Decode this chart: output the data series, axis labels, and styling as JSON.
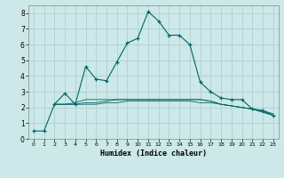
{
  "xlabel": "Humidex (Indice chaleur)",
  "bg_color": "#cce8e8",
  "grid_color": "#b0d0d0",
  "line_color": "#006666",
  "xlim": [
    -0.5,
    23.5
  ],
  "ylim": [
    0,
    8.5
  ],
  "xticks": [
    0,
    1,
    2,
    3,
    4,
    5,
    6,
    7,
    8,
    9,
    10,
    11,
    12,
    13,
    14,
    15,
    16,
    17,
    18,
    19,
    20,
    21,
    22,
    23
  ],
  "yticks": [
    0,
    1,
    2,
    3,
    4,
    5,
    6,
    7,
    8
  ],
  "series1_x": [
    0,
    1,
    2,
    3,
    4,
    5,
    6,
    7,
    8,
    9,
    10,
    11,
    12,
    13,
    14,
    15,
    16,
    17,
    18,
    19,
    20,
    21,
    22,
    23
  ],
  "series1_y": [
    0.5,
    0.5,
    2.2,
    2.9,
    2.2,
    4.6,
    3.8,
    3.7,
    4.9,
    6.1,
    6.4,
    8.1,
    7.5,
    6.6,
    6.6,
    6.0,
    3.6,
    3.0,
    2.6,
    2.5,
    2.5,
    1.9,
    1.8,
    1.5
  ],
  "series2_x": [
    2,
    3,
    4,
    5,
    6,
    7,
    8,
    9,
    10,
    11,
    12,
    13,
    14,
    15,
    16,
    17,
    18,
    19,
    20,
    21,
    22,
    23
  ],
  "series2_y": [
    2.2,
    2.2,
    2.2,
    2.2,
    2.2,
    2.3,
    2.3,
    2.4,
    2.4,
    2.4,
    2.4,
    2.4,
    2.4,
    2.4,
    2.3,
    2.3,
    2.2,
    2.1,
    2.0,
    1.9,
    1.8,
    1.6
  ],
  "series3_x": [
    2,
    3,
    4,
    5,
    6,
    7,
    8,
    9,
    10,
    11,
    12,
    13,
    14,
    15,
    16,
    17,
    18,
    19,
    20,
    21,
    22,
    23
  ],
  "series3_y": [
    2.2,
    2.2,
    2.3,
    2.5,
    2.5,
    2.5,
    2.5,
    2.5,
    2.5,
    2.5,
    2.5,
    2.5,
    2.5,
    2.5,
    2.5,
    2.4,
    2.2,
    2.1,
    2.0,
    1.9,
    1.7,
    1.5
  ],
  "series4_x": [
    2,
    3,
    4,
    5,
    6,
    7,
    8,
    9,
    10,
    11,
    12,
    13,
    14,
    15,
    16,
    17,
    18,
    19,
    20,
    21,
    22,
    23
  ],
  "series4_y": [
    2.2,
    2.2,
    2.2,
    2.3,
    2.3,
    2.4,
    2.5,
    2.5,
    2.5,
    2.5,
    2.5,
    2.5,
    2.5,
    2.5,
    2.5,
    2.4,
    2.2,
    2.1,
    2.0,
    1.9,
    1.7,
    1.5
  ]
}
